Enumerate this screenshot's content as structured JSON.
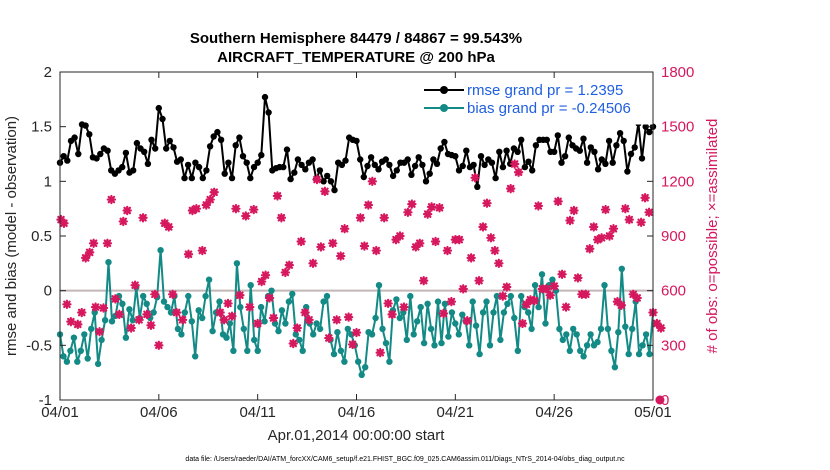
{
  "chart_data": {
    "type": "line",
    "title_line1": "Southern Hemisphere 84479 / 84867 = 99.543%",
    "title_line2": "AIRCRAFT_TEMPERATURE @ 200 hPa",
    "xlabel": "Apr.01,2014 00:00:00 start",
    "ylabel_left": "rmse and bias (model - observation)",
    "ylabel_right": "# of obs: o=possible; ×=assimilated",
    "footer": "data file: /Users/raeder/DAI/ATM_forcXX/CAM6_setup/f.e21.FHIST_BGC.f09_025.CAM6assim.011/Diags_NTrS_2014-04/obs_diag_output.nc",
    "x_ticks": [
      "04/01",
      "04/06",
      "04/11",
      "04/16",
      "04/21",
      "04/26",
      "05/01"
    ],
    "x_tick_days": [
      0,
      5,
      10,
      15,
      20,
      25,
      30
    ],
    "xlim": [
      0,
      30
    ],
    "y_left_ticks": [
      "-1",
      "-0.5",
      "0",
      "0.5",
      "1",
      "1.5",
      "2"
    ],
    "ylim_left": [
      -1,
      2
    ],
    "y_right_ticks": [
      "0",
      "300",
      "600",
      "900",
      "1200",
      "1500",
      "1800"
    ],
    "ylim_right": [
      0,
      1800
    ],
    "legend": [
      {
        "name": "rmse grand pr = 1.2395",
        "color": "#000000"
      },
      {
        "name": "bias grand pr = -0.24506",
        "color": "#138a85"
      }
    ],
    "colors": {
      "rmse": "#000000",
      "bias": "#138a85",
      "obs": "#d6185e",
      "zero": "#c4b7b7"
    },
    "series": [
      {
        "name": "rmse",
        "values": [
          1.17,
          1.23,
          1.19,
          1.37,
          1.4,
          1.25,
          1.52,
          1.51,
          1.43,
          1.22,
          1.21,
          1.25,
          1.3,
          1.28,
          1.1,
          1.07,
          1.1,
          1.13,
          1.26,
          1.08,
          1.1,
          1.35,
          1.3,
          1.27,
          1.16,
          1.38,
          1.3,
          1.67,
          1.57,
          1.3,
          1.37,
          1.31,
          1.18,
          1.2,
          1.03,
          1.15,
          1.03,
          1.17,
          1.13,
          1.03,
          1.1,
          1.32,
          1.41,
          1.45,
          1.38,
          1.07,
          1.17,
          1.03,
          1.33,
          1.4,
          1.23,
          1.17,
          1.03,
          1.13,
          1.17,
          1.24,
          1.77,
          1.63,
          1.1,
          1.12,
          1.13,
          1.13,
          1.29,
          1.02,
          1.08,
          1.2,
          1.15,
          1.11,
          1.17,
          1.2,
          1.02,
          1.1,
          1.0,
          1.05,
          1.0,
          0.92,
          1.17,
          1.15,
          1.19,
          1.4,
          1.38,
          1.37,
          1.2,
          1.04,
          1.14,
          1.22,
          1.15,
          1.11,
          1.18,
          1.2,
          1.15,
          1.05,
          1.1,
          1.17,
          1.17,
          1.2,
          1.06,
          1.14,
          1.22,
          1.15,
          1.0,
          1.07,
          1.2,
          1.16,
          1.3,
          1.36,
          1.25,
          1.24,
          1.23,
          1.1,
          1.14,
          1.28,
          1.13,
          1.15,
          0.95,
          1.23,
          1.15,
          1.2,
          1.17,
          1.03,
          1.27,
          1.13,
          1.28,
          1.16,
          1.3,
          1.27,
          1.38,
          1.13,
          1.18,
          1.1,
          1.33,
          1.38,
          1.38,
          1.38,
          1.27,
          1.27,
          1.42,
          1.17,
          1.23,
          1.4,
          1.33,
          1.3,
          1.28,
          1.39,
          1.17,
          1.31,
          1.27,
          1.11,
          1.2,
          1.16,
          1.37,
          1.17,
          1.33,
          1.44,
          1.37,
          1.09,
          1.25,
          1.31,
          1.53,
          1.21,
          1.5,
          1.45,
          1.5
        ]
      },
      {
        "name": "bias",
        "values": [
          -0.4,
          -0.6,
          -0.65,
          -0.55,
          -0.43,
          -0.65,
          -0.55,
          -0.4,
          -0.62,
          -0.35,
          -0.2,
          -0.67,
          -0.45,
          -0.27,
          0.26,
          -0.28,
          -0.23,
          -0.05,
          -0.12,
          -0.43,
          -0.17,
          -0.27,
          0.03,
          -0.25,
          -0.05,
          -0.12,
          -0.25,
          -0.2,
          -0.06,
          0.37,
          -0.1,
          -0.15,
          -0.2,
          -0.05,
          -0.35,
          -0.4,
          -0.2,
          -0.05,
          -0.28,
          -0.6,
          -0.18,
          -0.25,
          -0.05,
          0.1,
          -0.37,
          -0.2,
          -0.1,
          -0.4,
          -0.43,
          -0.3,
          -0.55,
          0.25,
          -0.15,
          -0.35,
          -0.55,
          0.05,
          -0.45,
          -0.55,
          -0.15,
          -0.28,
          -0.05,
          0.0,
          -0.3,
          -0.37,
          -0.18,
          -0.3,
          -0.1,
          -0.03,
          -0.4,
          -0.45,
          -0.55,
          -0.15,
          -0.3,
          -0.4,
          -0.3,
          -0.35,
          -0.1,
          -0.05,
          -0.45,
          -0.58,
          -0.38,
          -0.55,
          -0.65,
          -0.35,
          -0.4,
          -0.5,
          -0.65,
          -0.77,
          -0.7,
          -0.38,
          -0.4,
          -0.25,
          0.05,
          -0.35,
          -0.48,
          -0.65,
          -0.18,
          -0.08,
          -0.25,
          -0.2,
          -0.45,
          -0.05,
          -0.4,
          -0.28,
          -0.15,
          -0.48,
          -0.12,
          -0.35,
          -0.5,
          -0.1,
          -0.48,
          -0.12,
          -0.42,
          -0.2,
          -0.3,
          -0.4,
          -0.22,
          -0.28,
          -0.5,
          -0.1,
          -0.32,
          -0.58,
          -0.2,
          -0.1,
          -0.5,
          -0.2,
          -0.05,
          -0.45,
          -0.2,
          -0.12,
          -0.05,
          -0.25,
          -0.55,
          -0.05,
          -0.15,
          -0.2,
          -0.35,
          0.05,
          -0.15,
          0.15,
          -0.3,
          0.05,
          0.1,
          0.0,
          -0.35,
          -0.45,
          -0.4,
          -0.55,
          -0.35,
          -0.4,
          -0.55,
          -0.6,
          -0.5,
          -0.4,
          -0.5,
          -0.47,
          -0.35,
          0.05,
          -0.35,
          -0.55,
          -0.7,
          -0.38,
          0.2,
          -0.33,
          -0.58,
          -0.35,
          -0.1,
          -0.58,
          -0.5,
          -0.4,
          -0.58,
          -0.2
        ]
      },
      {
        "name": "obs_assimilated",
        "values": [
          [
            0.05,
            990
          ],
          [
            0.2,
            970
          ],
          [
            0.35,
            525
          ],
          [
            0.55,
            430
          ],
          [
            0.9,
            415
          ],
          [
            1.1,
            480
          ],
          [
            1.3,
            780
          ],
          [
            1.5,
            810
          ],
          [
            1.7,
            860
          ],
          [
            1.8,
            510
          ],
          [
            2.0,
            375
          ],
          [
            2.2,
            505
          ],
          [
            2.4,
            860
          ],
          [
            2.6,
            1100
          ],
          [
            2.8,
            555
          ],
          [
            3.0,
            470
          ],
          [
            3.2,
            980
          ],
          [
            3.4,
            1040
          ],
          [
            3.6,
            395
          ],
          [
            3.8,
            630
          ],
          [
            4.0,
            440
          ],
          [
            4.2,
            1000
          ],
          [
            4.4,
            470
          ],
          [
            4.6,
            410
          ],
          [
            4.8,
            580
          ],
          [
            5.0,
            300
          ],
          [
            5.3,
            970
          ],
          [
            5.5,
            950
          ],
          [
            5.7,
            580
          ],
          [
            5.9,
            480
          ],
          [
            6.2,
            440
          ],
          [
            6.5,
            800
          ],
          [
            6.7,
            1040
          ],
          [
            6.9,
            1050
          ],
          [
            7.2,
            820
          ],
          [
            7.4,
            1070
          ],
          [
            7.6,
            1100
          ],
          [
            7.8,
            1140
          ],
          [
            8.1,
            480
          ],
          [
            8.3,
            440
          ],
          [
            8.5,
            530
          ],
          [
            8.7,
            460
          ],
          [
            8.9,
            1050
          ],
          [
            9.1,
            575
          ],
          [
            9.4,
            1010
          ],
          [
            9.6,
            510
          ],
          [
            9.8,
            1045
          ],
          [
            10.0,
            420
          ],
          [
            10.2,
            650
          ],
          [
            10.4,
            685
          ],
          [
            10.6,
            560
          ],
          [
            10.8,
            450
          ],
          [
            11.0,
            1120
          ],
          [
            11.2,
            1000
          ],
          [
            11.4,
            700
          ],
          [
            11.6,
            740
          ],
          [
            11.8,
            310
          ],
          [
            12.0,
            395
          ],
          [
            12.2,
            870
          ],
          [
            12.4,
            480
          ],
          [
            12.6,
            440
          ],
          [
            12.8,
            750
          ],
          [
            13.0,
            1210
          ],
          [
            13.2,
            840
          ],
          [
            13.4,
            1145
          ],
          [
            13.6,
            340
          ],
          [
            13.8,
            860
          ],
          [
            14.0,
            440
          ],
          [
            14.2,
            790
          ],
          [
            14.4,
            940
          ],
          [
            14.6,
            455
          ],
          [
            14.8,
            305
          ],
          [
            15.0,
            370
          ],
          [
            15.2,
            1000
          ],
          [
            15.4,
            845
          ],
          [
            15.6,
            1070
          ],
          [
            15.8,
            1200
          ],
          [
            16.0,
            820
          ],
          [
            16.2,
            260
          ],
          [
            16.4,
            1000
          ],
          [
            16.6,
            530
          ],
          [
            16.8,
            470
          ],
          [
            17.0,
            880
          ],
          [
            17.2,
            900
          ],
          [
            17.4,
            510
          ],
          [
            17.6,
            1030
          ],
          [
            17.8,
            1075
          ],
          [
            18.0,
            840
          ],
          [
            18.2,
            860
          ],
          [
            18.4,
            655
          ],
          [
            18.6,
            1020
          ],
          [
            18.8,
            1060
          ],
          [
            19.0,
            870
          ],
          [
            19.2,
            1055
          ],
          [
            19.4,
            475
          ],
          [
            19.6,
            820
          ],
          [
            19.8,
            540
          ],
          [
            20.0,
            880
          ],
          [
            20.2,
            880
          ],
          [
            20.4,
            610
          ],
          [
            20.6,
            435
          ],
          [
            20.8,
            780
          ],
          [
            21.0,
            1220
          ],
          [
            21.2,
            655
          ],
          [
            21.4,
            950
          ],
          [
            21.6,
            1080
          ],
          [
            21.8,
            890
          ],
          [
            22.0,
            820
          ],
          [
            22.2,
            750
          ],
          [
            22.4,
            570
          ],
          [
            22.6,
            620
          ],
          [
            22.8,
            1160
          ],
          [
            23.0,
            1295
          ],
          [
            23.2,
            1250
          ],
          [
            23.4,
            420
          ],
          [
            23.6,
            525
          ],
          [
            23.8,
            550
          ],
          [
            24.0,
            545
          ],
          [
            24.2,
            1065
          ],
          [
            24.4,
            610
          ],
          [
            24.6,
            610
          ],
          [
            24.8,
            575
          ],
          [
            25.0,
            625
          ],
          [
            25.2,
            1090
          ],
          [
            25.4,
            690
          ],
          [
            25.6,
            510
          ],
          [
            25.8,
            985
          ],
          [
            26.0,
            1040
          ],
          [
            26.2,
            670
          ],
          [
            26.4,
            580
          ],
          [
            26.6,
            580
          ],
          [
            26.8,
            830
          ],
          [
            27.0,
            950
          ],
          [
            27.2,
            880
          ],
          [
            27.4,
            890
          ],
          [
            27.6,
            1045
          ],
          [
            27.8,
            900
          ],
          [
            28.0,
            940
          ],
          [
            28.2,
            540
          ],
          [
            28.4,
            520
          ],
          [
            28.6,
            1050
          ],
          [
            28.8,
            990
          ],
          [
            29.0,
            580
          ],
          [
            29.2,
            560
          ],
          [
            29.4,
            975
          ],
          [
            29.6,
            1110
          ],
          [
            29.8,
            1030
          ],
          [
            30.0,
            480
          ],
          [
            30.2,
            420
          ],
          [
            30.4,
            395
          ]
        ]
      },
      {
        "name": "obs_possible",
        "values": [
          [
            30.35,
            0
          ]
        ]
      }
    ]
  }
}
